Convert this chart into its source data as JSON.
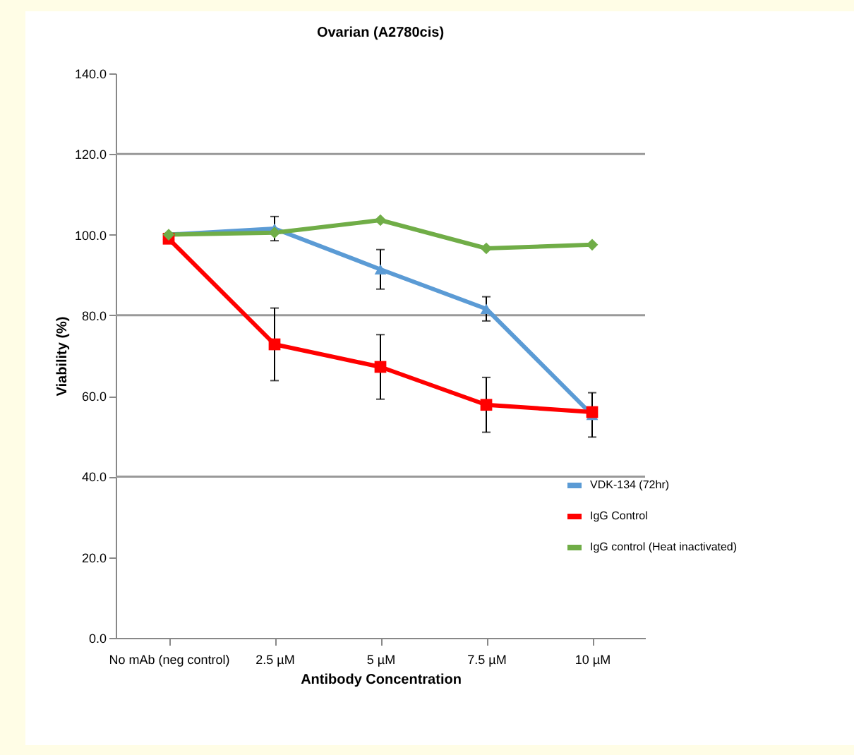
{
  "chart_data": {
    "type": "line",
    "title": "Ovarian (A2780cis)",
    "xlabel": "Antibody Concentration",
    "ylabel": "Viability (%)",
    "categories": [
      "No mAb (neg control)",
      "2.5 µM",
      "5 µM",
      "7.5 µM",
      "10 µM"
    ],
    "series": [
      {
        "name": "VDK-134 (72hr)",
        "color": "#5b9bd5",
        "marker": "triangle",
        "values": [
          100,
          101.5,
          91.4,
          81.6,
          55.3
        ],
        "errors": [
          null,
          3,
          4.9,
          3,
          5.5
        ]
      },
      {
        "name": "IgG Control",
        "color": "#ff0000",
        "marker": "square",
        "values": [
          99,
          72.8,
          67.2,
          57.8,
          56
        ],
        "errors": [
          null,
          9,
          8,
          6.8,
          null
        ]
      },
      {
        "name": "IgG control (Heat inactivated)",
        "color": "#70ad47",
        "marker": "diamond",
        "values": [
          100,
          100.5,
          103.6,
          96.6,
          97.5
        ]
      }
    ],
    "ylim": [
      0,
      140
    ],
    "yticks": [
      {
        "value": 0,
        "label": "0.0"
      },
      {
        "value": 20,
        "label": "20.0"
      },
      {
        "value": 40,
        "label": "40.0"
      },
      {
        "value": 60,
        "label": "60.0"
      },
      {
        "value": 80,
        "label": "80.0"
      },
      {
        "value": 100,
        "label": "100.0"
      },
      {
        "value": 120,
        "label": "120.0"
      },
      {
        "value": 140,
        "label": "140.0"
      }
    ],
    "ref_lines": [
      {
        "axis": "y",
        "value": 120
      },
      {
        "axis": "y",
        "value": 80
      },
      {
        "axis": "y",
        "value": 40
      }
    ],
    "legend": "right",
    "line_style": "solid"
  }
}
